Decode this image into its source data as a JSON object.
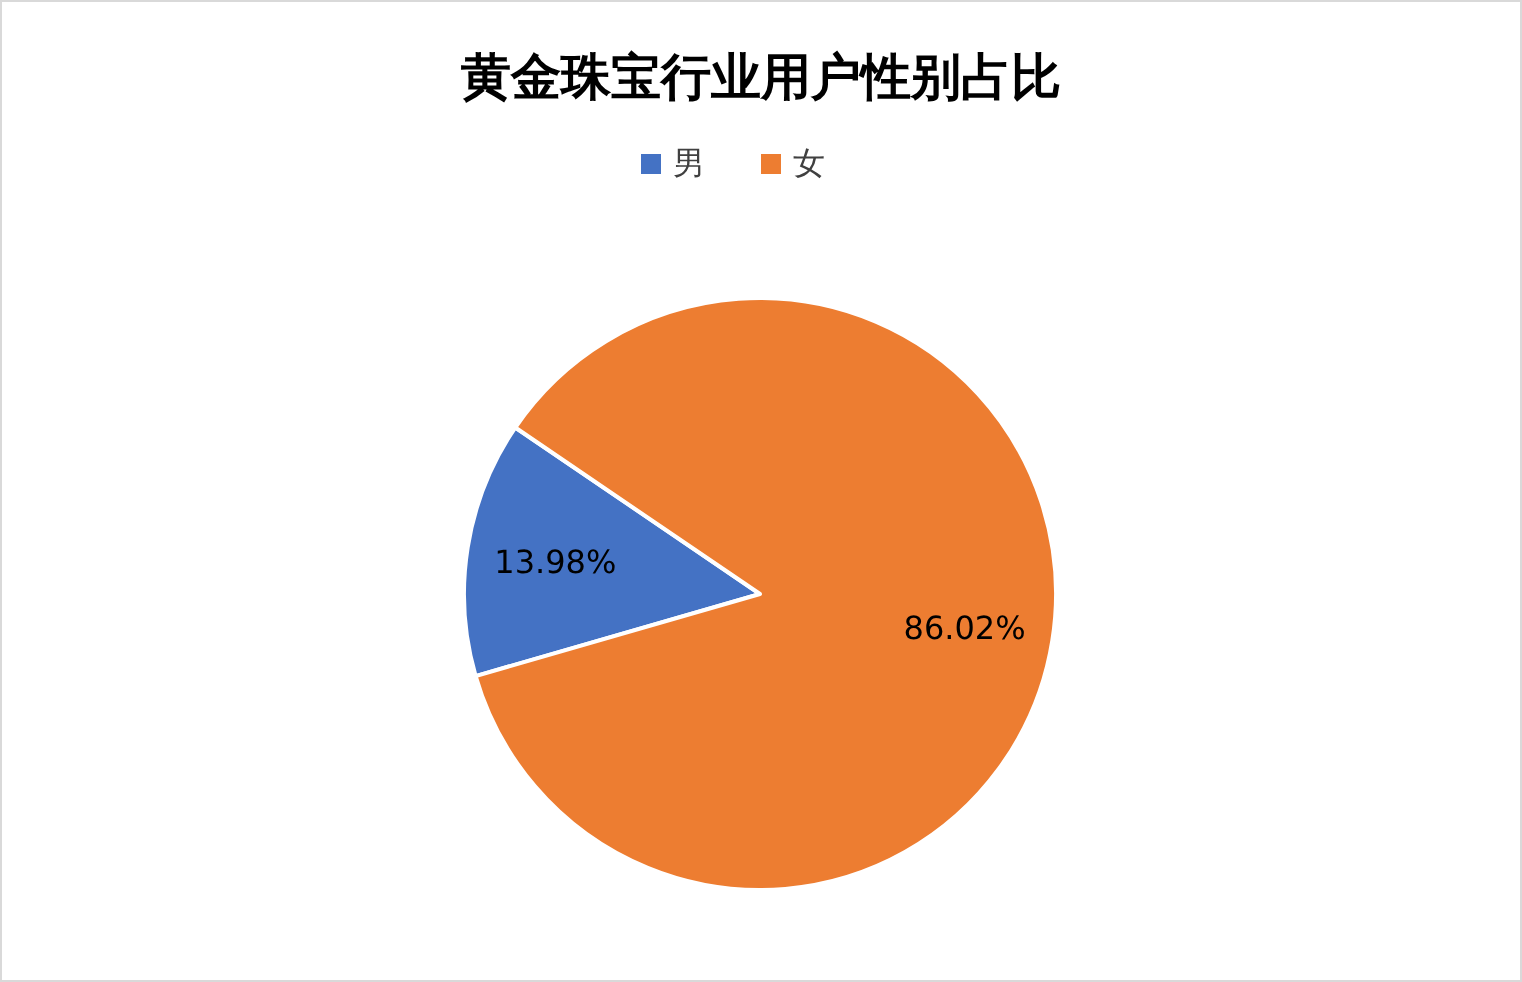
{
  "chart_data": {
    "type": "pie",
    "title": "黄金珠宝行业用户性别占比",
    "categories": [
      "男",
      "女"
    ],
    "values": [
      13.98,
      86.02
    ],
    "value_labels": [
      "13.98%",
      "86.02%"
    ],
    "colors": [
      "#4472c4",
      "#ed7d31"
    ],
    "legend": "top"
  }
}
